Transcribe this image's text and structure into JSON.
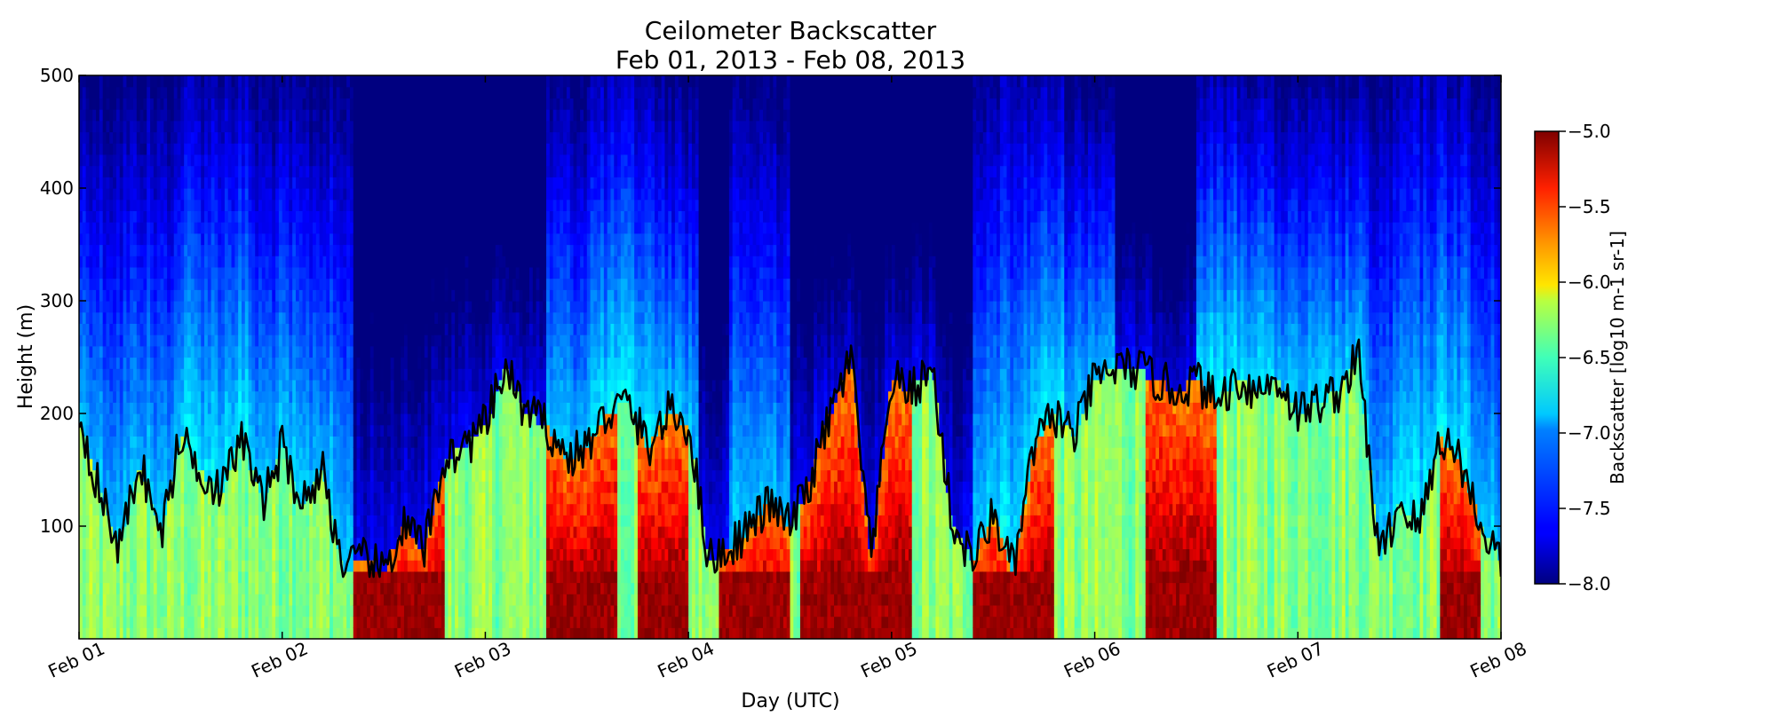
{
  "chart_data": {
    "type": "heatmap",
    "title": "Ceilometer Backscatter",
    "subtitle": "Feb 01, 2013 - Feb 08, 2013",
    "xlabel": "Day (UTC)",
    "ylabel": "Height (m)",
    "x_ticks": [
      "Feb 01",
      "Feb 02",
      "Feb 03",
      "Feb 04",
      "Feb 05",
      "Feb 06",
      "Feb 07",
      "Feb 08"
    ],
    "x_range": [
      "Feb 01",
      "Feb 08"
    ],
    "ylim": [
      0,
      500
    ],
    "y_ticks": [
      100,
      200,
      300,
      400,
      500
    ],
    "colorbar": {
      "label": "Backscatter [log10 m-1 sr-1]",
      "range": [
        -8.0,
        -5.0
      ],
      "ticks": [
        "-5.0",
        "-5.5",
        "-6.0",
        "-6.5",
        "-7.0",
        "-7.5",
        "-8.0"
      ],
      "colormap": "jet"
    },
    "mixing_height_series": {
      "color": "#000000",
      "x_days": [
        0,
        0.1,
        0.2,
        0.3,
        0.4,
        0.5,
        0.6,
        0.7,
        0.8,
        0.9,
        1.0,
        1.1,
        1.2,
        1.3,
        1.4,
        1.5,
        1.6,
        1.7,
        1.8,
        1.9,
        2.0,
        2.1,
        2.2,
        2.3,
        2.4,
        2.5,
        2.6,
        2.7,
        2.8,
        2.9,
        3.0,
        3.1,
        3.2,
        3.3,
        3.4,
        3.5,
        3.6,
        3.7,
        3.8,
        3.9,
        4.0,
        4.1,
        4.2,
        4.3,
        4.4,
        4.5,
        4.6,
        4.7,
        4.8,
        4.9,
        5.0,
        5.1,
        5.2,
        5.3,
        5.4,
        5.5,
        5.6,
        5.7,
        5.8,
        5.9,
        6.0,
        6.1,
        6.2,
        6.3,
        6.4,
        6.5,
        6.6,
        6.7,
        6.8,
        6.9,
        7.0
      ],
      "height_m": [
        200,
        130,
        80,
        160,
        90,
        180,
        150,
        130,
        180,
        120,
        170,
        120,
        150,
        60,
        70,
        60,
        100,
        80,
        160,
        170,
        190,
        240,
        200,
        190,
        160,
        170,
        200,
        210,
        170,
        200,
        190,
        70,
        80,
        100,
        120,
        100,
        140,
        200,
        250,
        70,
        230,
        220,
        240,
        100,
        70,
        110,
        60,
        170,
        200,
        180,
        230,
        240,
        240,
        230,
        220,
        230,
        210,
        230,
        220,
        230,
        200,
        210,
        220,
        250,
        70,
        120,
        100,
        180,
        160,
        100,
        70
      ]
    }
  }
}
